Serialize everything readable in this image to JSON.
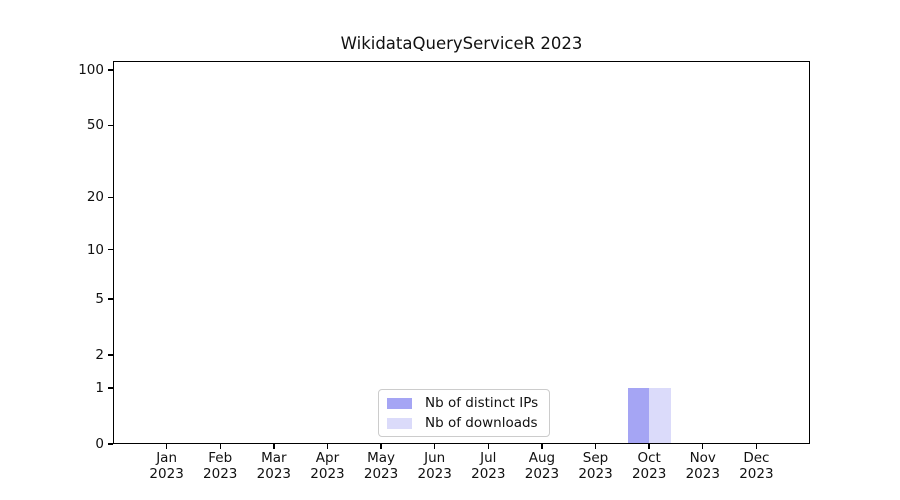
{
  "chart_data": {
    "type": "bar",
    "title": "WikidataQueryServiceR 2023",
    "categories": [
      "Jan",
      "Feb",
      "Mar",
      "Apr",
      "May",
      "Jun",
      "Jul",
      "Aug",
      "Sep",
      "Oct",
      "Nov",
      "Dec"
    ],
    "category_sublabel": "2023",
    "series": [
      {
        "name": "Nb of distinct IPs",
        "color": "#a5a5f4",
        "values": [
          0,
          0,
          0,
          0,
          0,
          0,
          0,
          0,
          0,
          1,
          0,
          0
        ]
      },
      {
        "name": "Nb of downloads",
        "color": "#dbdbfa",
        "values": [
          0,
          0,
          0,
          0,
          0,
          0,
          0,
          0,
          0,
          1,
          0,
          0
        ]
      }
    ],
    "yscale": "log1p",
    "ylim": [
      0,
      112
    ],
    "yticks_major": [
      0,
      1,
      2,
      5,
      10,
      20,
      50,
      100
    ],
    "yticks_minor": [
      3,
      4,
      6,
      7,
      8,
      9,
      30,
      40,
      60,
      70,
      80,
      90
    ],
    "grid": "horizontal",
    "legend": {
      "position": "lower center"
    },
    "colors": {
      "grid_power10": "#c6c6c6",
      "grid_minor": "#ebebeb",
      "spine": "#000000",
      "background": "#ffffff",
      "text": "#111111"
    }
  }
}
